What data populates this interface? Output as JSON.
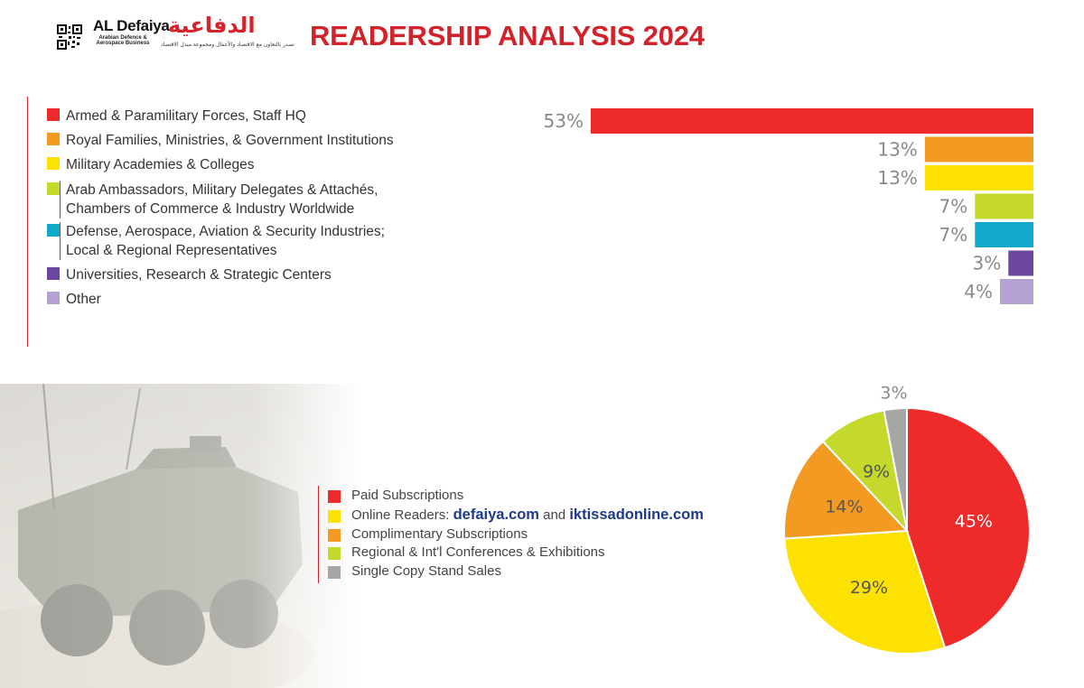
{
  "header": {
    "brand_en": "AL Defaiya",
    "brand_ar": "الدفاعية",
    "brand_sub": "Arabian Defence & Aerospace Business",
    "brand_tag": "تصدر بالتعاون مع الاقتصاد والأعمال ومجموعة ميدل الاقتصاد",
    "title": "READERSHIP ANALYSIS 2024"
  },
  "chart_data": [
    {
      "type": "bar",
      "orientation": "horizontal",
      "categories": [
        "Armed & Paramilitary Forces, Staff HQ",
        "Royal Families, Ministries, & Government Institutions",
        "Military Academies & Colleges",
        "Arab Ambassadors, Military Delegates & Attachés, Chambers of Commerce & Industry Worldwide",
        "Defense, Aerospace, Aviation & Security Industries; Local & Regional Representatives",
        "Universities, Research & Strategic Centers",
        "Other"
      ],
      "values": [
        53,
        13,
        13,
        7,
        7,
        3,
        4
      ],
      "data_labels": [
        "53%",
        "13%",
        "13%",
        "7%",
        "7%",
        "3%",
        "4%"
      ],
      "colors": [
        "#ee2a2a",
        "#f39a22",
        "#fde100",
        "#c5d92c",
        "#11a9c9",
        "#6b47a0",
        "#b3a2d2"
      ],
      "legend_placement": "left",
      "grid": false
    },
    {
      "type": "pie",
      "categories": [
        "Paid Subscriptions",
        "Online Readers",
        "Complimentary Subscriptions",
        "Regional & Int'l Conferences & Exhibitions",
        "Single Copy Stand Sales"
      ],
      "values": [
        45,
        29,
        14,
        9,
        3
      ],
      "data_labels": [
        "45%",
        "29%",
        "14%",
        "9%",
        "3%"
      ],
      "colors": [
        "#ee2a2a",
        "#fde100",
        "#f39a22",
        "#c5d92c",
        "#a6a6a6"
      ],
      "legend_placement": "left"
    }
  ],
  "legend2": {
    "online_prefix": "Online Readers:",
    "link1": "defaiya.com",
    "and": "and",
    "link2": "iktissadonline.com"
  },
  "photo": {
    "icon": "armored-vehicle-photo"
  }
}
